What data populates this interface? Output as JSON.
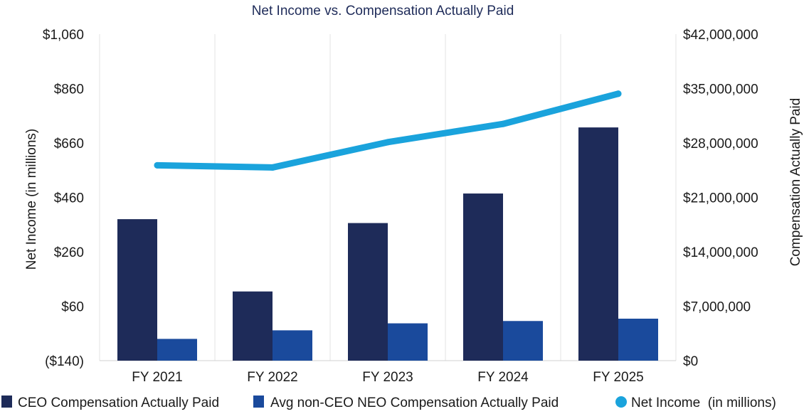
{
  "chart_data": {
    "type": "bar",
    "title": "Net Income vs. Compensation Actually Paid",
    "categories": [
      "FY 2021",
      "FY 2022",
      "FY 2023",
      "FY 2024",
      "FY 2025"
    ],
    "series": [
      {
        "name": "CEO Compensation Actually Paid",
        "type": "bar",
        "axis": "right",
        "color": "#1e2b59",
        "values": [
          18200000,
          8900000,
          17700000,
          21500000,
          30000000
        ]
      },
      {
        "name": "Avg non-CEO NEO Compensation Actually Paid",
        "type": "bar",
        "axis": "right",
        "color": "#1a4a9c",
        "values": [
          2800000,
          3900000,
          4800000,
          5100000,
          5400000
        ]
      },
      {
        "name": "Net Income  (in millions)",
        "type": "line",
        "axis": "left",
        "color": "#1aa3dc",
        "values": [
          578,
          570,
          663,
          730,
          841
        ]
      }
    ],
    "left_axis": {
      "label": "Net Income  (in millions)",
      "ylim": [
        -140,
        1060
      ],
      "ticks": [
        -140,
        60,
        260,
        460,
        660,
        860,
        1060
      ],
      "tick_labels": [
        "($140)",
        "$60",
        "$260",
        "$460",
        "$660",
        "$860",
        "$1,060"
      ]
    },
    "right_axis": {
      "label": "Compensation Actually Paid",
      "ylim": [
        0,
        42000000
      ],
      "ticks": [
        0,
        7000000,
        14000000,
        21000000,
        28000000,
        35000000,
        42000000
      ],
      "tick_labels": [
        "$0",
        "$7,000,000",
        "$14,000,000",
        "$21,000,000",
        "$28,000,000",
        "$35,000,000",
        "$42,000,000"
      ]
    },
    "grid": "vertical-lines-at-category-edges",
    "legend_position": "bottom"
  }
}
